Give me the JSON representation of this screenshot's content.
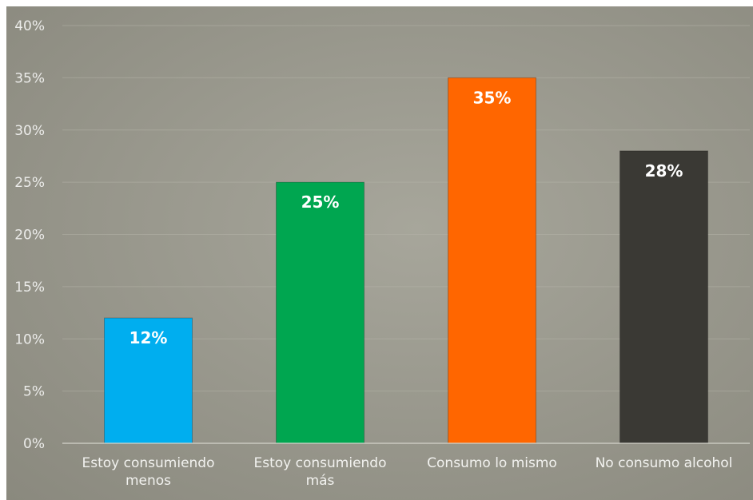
{
  "chart_data": {
    "type": "bar",
    "title": "",
    "xlabel": "",
    "ylabel": "",
    "categories": [
      [
        "Estoy consumiendo",
        "menos"
      ],
      [
        "Estoy consumiendo",
        "más"
      ],
      [
        "Consumo lo mismo"
      ],
      [
        "No consumo alcohol"
      ]
    ],
    "values": [
      12,
      25,
      35,
      28
    ],
    "data_labels": [
      "12%",
      "25%",
      "35%",
      "28%"
    ],
    "colors": [
      "#00aeef",
      "#00a650",
      "#ff6600",
      "#3a3934"
    ],
    "ylim": [
      0,
      40
    ],
    "yticks": [
      0,
      5,
      10,
      15,
      20,
      25,
      30,
      35,
      40
    ],
    "ytick_labels": [
      "0%",
      "5%",
      "10%",
      "15%",
      "20%",
      "25%",
      "30%",
      "35%",
      "40%"
    ],
    "grid": true,
    "legend": "none"
  }
}
